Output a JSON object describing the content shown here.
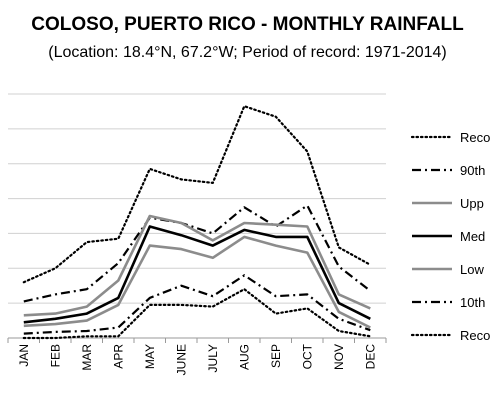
{
  "chart_data": {
    "type": "line",
    "title": "COLOSO, PUERTO RICO - MONTHLY RAINFALL",
    "subtitle": "(Location: 18.4°N, 67.2°W; Period of record: 1971-2014)",
    "categories": [
      "JAN",
      "FEB",
      "MAR",
      "APR",
      "MAY",
      "JUNE",
      "JULY",
      "AUG",
      "SEP",
      "OCT",
      "NOV",
      "DEC"
    ],
    "ylim": [
      0,
      14
    ],
    "grid": true,
    "legend_position": "right",
    "series": [
      {
        "name": "Reco",
        "style": "dotted-black",
        "values": [
          3.2,
          4.0,
          5.5,
          5.7,
          9.7,
          9.1,
          8.9,
          13.3,
          12.7,
          10.7,
          5.2,
          4.2
        ]
      },
      {
        "name": "90th",
        "style": "dashdot-black",
        "values": [
          2.1,
          2.5,
          2.8,
          4.3,
          6.9,
          6.6,
          6.0,
          7.5,
          6.4,
          7.6,
          4.1,
          2.7
        ]
      },
      {
        "name": "Upp",
        "style": "solid-gray",
        "values": [
          1.3,
          1.4,
          1.8,
          3.3,
          7.0,
          6.6,
          5.6,
          6.6,
          6.5,
          6.4,
          2.5,
          1.7
        ]
      },
      {
        "name": "Med",
        "style": "solid-black",
        "values": [
          0.9,
          1.1,
          1.4,
          2.3,
          6.4,
          5.9,
          5.3,
          6.2,
          5.8,
          5.8,
          2.0,
          1.1
        ]
      },
      {
        "name": "Low",
        "style": "solid-gray",
        "values": [
          0.7,
          0.8,
          1.0,
          1.9,
          5.3,
          5.1,
          4.6,
          5.8,
          5.3,
          4.9,
          1.5,
          0.6
        ]
      },
      {
        "name": "10th",
        "style": "dashdot-black",
        "values": [
          0.25,
          0.35,
          0.4,
          0.6,
          2.3,
          3.0,
          2.4,
          3.6,
          2.4,
          2.5,
          1.1,
          0.45
        ]
      },
      {
        "name": "Reco",
        "style": "dotted-black",
        "values": [
          0.0,
          0.0,
          0.1,
          0.1,
          1.9,
          1.9,
          1.8,
          2.8,
          1.4,
          1.7,
          0.4,
          0.1
        ]
      }
    ]
  }
}
